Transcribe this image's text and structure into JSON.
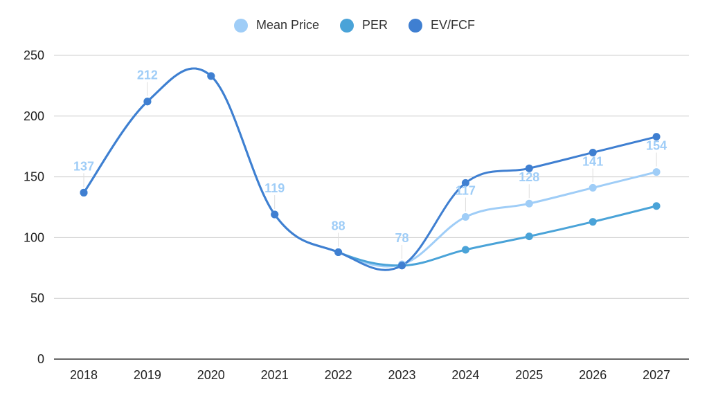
{
  "chart_data": {
    "type": "line",
    "categories": [
      "2018",
      "2019",
      "2020",
      "2021",
      "2022",
      "2023",
      "2024",
      "2025",
      "2026",
      "2027"
    ],
    "ylim": [
      0,
      250
    ],
    "yticks": [
      0,
      50,
      100,
      150,
      200,
      250
    ],
    "grid": true,
    "legend_position": "top-center",
    "series": [
      {
        "name": "Mean Price",
        "color": "#9fcdf7",
        "values": [
          137,
          212,
          233,
          119,
          88,
          78,
          117,
          128,
          141,
          154
        ],
        "labels": [
          "137",
          "212",
          "",
          "119",
          "88",
          "78",
          "117",
          "128",
          "141",
          "154"
        ]
      },
      {
        "name": "PER",
        "color": "#4aa3d8",
        "values": [
          137,
          212,
          233,
          119,
          88,
          77,
          90,
          101,
          113,
          126
        ]
      },
      {
        "name": "EV/FCF",
        "color": "#3f7fd1",
        "values": [
          137,
          212,
          233,
          119,
          88,
          77,
          145,
          157,
          170,
          183
        ]
      }
    ]
  }
}
